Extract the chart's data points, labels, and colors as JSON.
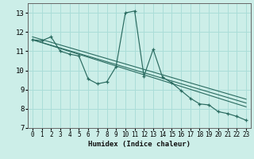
{
  "background_color": "#cceee8",
  "grid_color": "#aaddd8",
  "line_color": "#2a6b60",
  "xlabel": "Humidex (Indice chaleur)",
  "xlim": [
    -0.5,
    23.5
  ],
  "ylim": [
    7.0,
    13.5
  ],
  "yticks": [
    7,
    8,
    9,
    10,
    11,
    12,
    13
  ],
  "xticks": [
    0,
    1,
    2,
    3,
    4,
    5,
    6,
    7,
    8,
    9,
    10,
    11,
    12,
    13,
    14,
    15,
    16,
    17,
    18,
    19,
    20,
    21,
    22,
    23
  ],
  "main_line": {
    "x": [
      0,
      1,
      2,
      3,
      4,
      5,
      6,
      7,
      8,
      9,
      10,
      11,
      12,
      13,
      14,
      15,
      16,
      17,
      18,
      19,
      20,
      21,
      22,
      23
    ],
    "y": [
      11.6,
      11.55,
      11.75,
      11.0,
      10.85,
      10.75,
      9.55,
      9.3,
      9.4,
      10.2,
      13.0,
      13.1,
      9.7,
      11.1,
      9.65,
      9.35,
      8.95,
      8.55,
      8.25,
      8.2,
      7.85,
      7.75,
      7.6,
      7.4
    ]
  },
  "straight_lines": [
    {
      "x0": 0,
      "y0": 11.6,
      "x1": 23,
      "y1": 8.1
    },
    {
      "x0": 0,
      "y0": 11.6,
      "x1": 23,
      "y1": 8.3
    },
    {
      "x0": 0,
      "y0": 11.75,
      "x1": 23,
      "y1": 8.5
    }
  ]
}
